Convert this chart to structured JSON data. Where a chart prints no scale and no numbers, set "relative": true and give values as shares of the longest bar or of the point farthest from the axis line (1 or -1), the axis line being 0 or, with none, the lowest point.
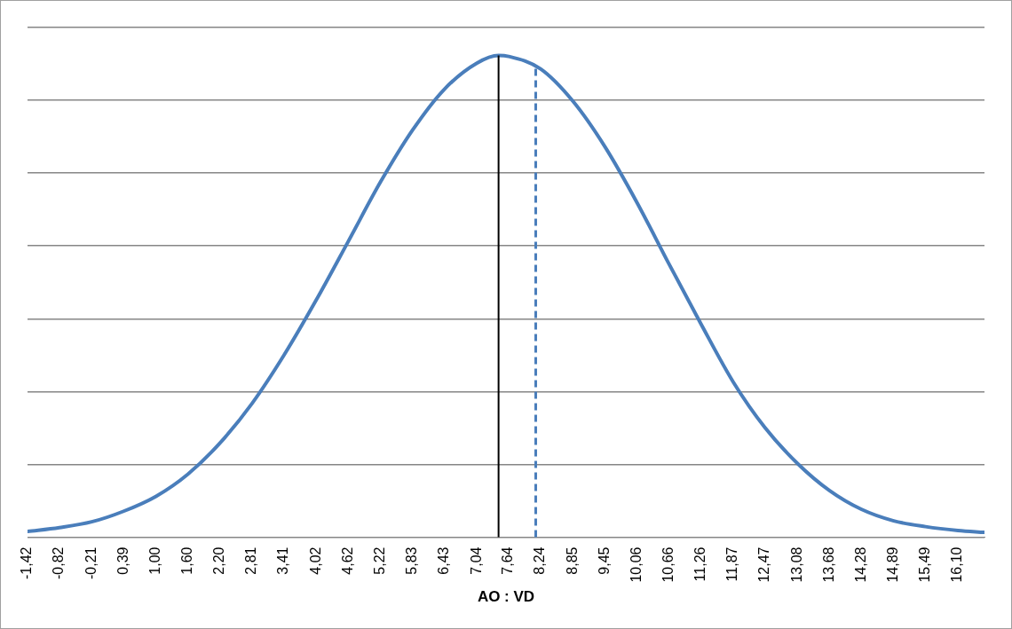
{
  "chart_data": {
    "type": "line",
    "xlabel": "AO : VD",
    "relative": true,
    "grid": "y",
    "legend": false,
    "marker": "none",
    "line_style": "solid",
    "xlim": [
      -1.42,
      16.6
    ],
    "xticks": [
      {
        "value": -1.42,
        "label": "-1,42"
      },
      {
        "value": -0.82,
        "label": "-0,82"
      },
      {
        "value": -0.21,
        "label": "-0,21"
      },
      {
        "value": 0.39,
        "label": "0,39"
      },
      {
        "value": 1.0,
        "label": "1,00"
      },
      {
        "value": 1.6,
        "label": "1,60"
      },
      {
        "value": 2.2,
        "label": "2,20"
      },
      {
        "value": 2.81,
        "label": "2,81"
      },
      {
        "value": 3.41,
        "label": "3,41"
      },
      {
        "value": 4.02,
        "label": "4,02"
      },
      {
        "value": 4.62,
        "label": "4,62"
      },
      {
        "value": 5.22,
        "label": "5,22"
      },
      {
        "value": 5.83,
        "label": "5,83"
      },
      {
        "value": 6.43,
        "label": "6,43"
      },
      {
        "value": 7.04,
        "label": "7,04"
      },
      {
        "value": 7.64,
        "label": "7,64"
      },
      {
        "value": 8.24,
        "label": "8,24"
      },
      {
        "value": 8.85,
        "label": "8,85"
      },
      {
        "value": 9.45,
        "label": "9,45"
      },
      {
        "value": 10.06,
        "label": "10,06"
      },
      {
        "value": 10.66,
        "label": "10,66"
      },
      {
        "value": 11.26,
        "label": "11,26"
      },
      {
        "value": 11.87,
        "label": "11,87"
      },
      {
        "value": 12.47,
        "label": "12,47"
      },
      {
        "value": 13.08,
        "label": "13,08"
      },
      {
        "value": 13.68,
        "label": "13,68"
      },
      {
        "value": 14.28,
        "label": "14,28"
      },
      {
        "value": 14.89,
        "label": "14,89"
      },
      {
        "value": 15.49,
        "label": "15,49"
      },
      {
        "value": 16.1,
        "label": "16,10"
      }
    ],
    "series": [
      {
        "color": "#4a7ebb",
        "x": [
          -1.42,
          -0.82,
          -0.21,
          0.39,
          1.0,
          1.6,
          2.2,
          2.81,
          3.41,
          4.02,
          4.62,
          5.22,
          5.83,
          6.43,
          7.04,
          7.45,
          7.64,
          8.24,
          8.85,
          9.45,
          10.06,
          10.66,
          11.26,
          11.87,
          12.47,
          13.08,
          13.68,
          14.28,
          14.89,
          15.49,
          16.1,
          16.6
        ],
        "values": [
          0.012,
          0.02,
          0.032,
          0.054,
          0.085,
          0.131,
          0.195,
          0.278,
          0.378,
          0.493,
          0.614,
          0.736,
          0.845,
          0.93,
          0.984,
          1.0,
          0.998,
          0.972,
          0.905,
          0.811,
          0.694,
          0.567,
          0.443,
          0.322,
          0.227,
          0.153,
          0.097,
          0.058,
          0.034,
          0.022,
          0.014,
          0.01
        ]
      }
    ],
    "ref_lines": [
      {
        "axis": "x",
        "value": 7.45,
        "color": "#000000",
        "line_style": "solid"
      },
      {
        "axis": "x",
        "value": 8.15,
        "color": "#4a7ebb",
        "line_style": "dashed"
      }
    ]
  }
}
